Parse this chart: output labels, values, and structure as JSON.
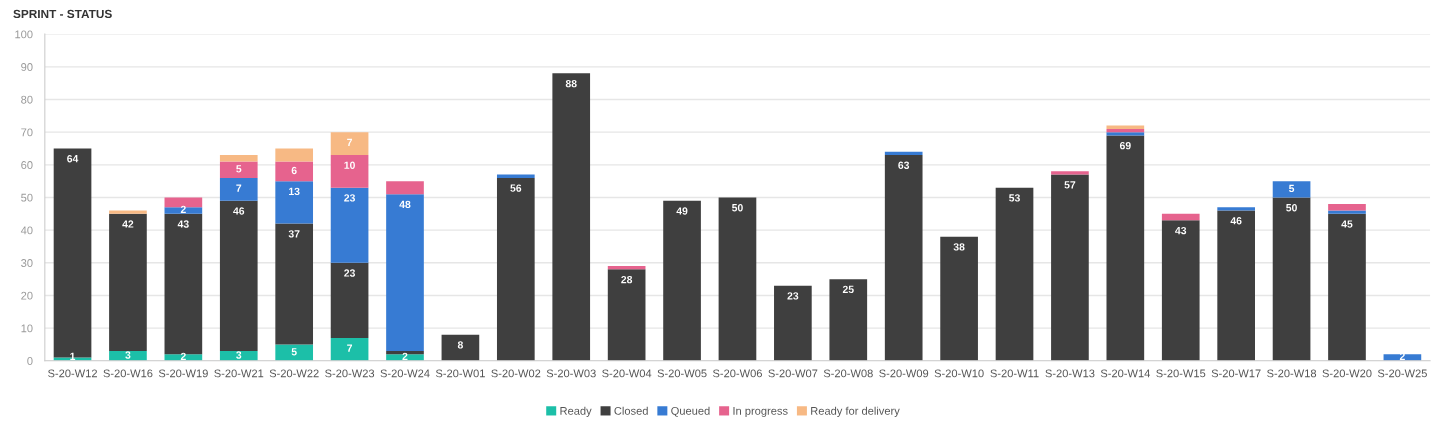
{
  "chart_data": {
    "type": "bar",
    "title": "SPRINT - STATUS",
    "stacked": true,
    "grid": "y",
    "legend": "bottom",
    "ylim": [
      0,
      100
    ],
    "yticks": [
      0,
      10,
      20,
      30,
      40,
      50,
      60,
      70,
      80,
      90,
      100
    ],
    "categories": [
      "S-20-W12",
      "S-20-W16",
      "S-20-W19",
      "S-20-W21",
      "S-20-W22",
      "S-20-W23",
      "S-20-W24",
      "S-20-W01",
      "S-20-W02",
      "S-20-W03",
      "S-20-W04",
      "S-20-W05",
      "S-20-W06",
      "S-20-W07",
      "S-20-W08",
      "S-20-W09",
      "S-20-W10",
      "S-20-W11",
      "S-20-W13",
      "S-20-W14",
      "S-20-W15",
      "S-20-W17",
      "S-20-W18",
      "S-20-W20",
      "S-20-W25"
    ],
    "series": [
      {
        "name": "Ready",
        "color": "#1cbfa8",
        "values": [
          1,
          3,
          2,
          3,
          5,
          7,
          2,
          null,
          null,
          null,
          null,
          null,
          null,
          null,
          null,
          null,
          null,
          null,
          null,
          null,
          null,
          null,
          null,
          null,
          null
        ],
        "value_labels": [
          "1",
          "3",
          "2",
          "3",
          "5",
          "7",
          "2",
          null,
          null,
          null,
          null,
          null,
          null,
          null,
          null,
          null,
          null,
          null,
          null,
          null,
          null,
          null,
          null,
          null,
          null
        ]
      },
      {
        "name": "Closed",
        "color": "#3f3f3f",
        "values": [
          64,
          42,
          43,
          46,
          37,
          23,
          1,
          8,
          56,
          88,
          28,
          49,
          50,
          23,
          25,
          63,
          38,
          53,
          57,
          69,
          43,
          46,
          50,
          45,
          null
        ],
        "value_labels": [
          "64",
          "42",
          "43",
          "46",
          "37",
          "23",
          null,
          "8",
          "56",
          "88",
          "28",
          "49",
          "50",
          "23",
          "25",
          "63",
          "38",
          "53",
          "57",
          "69",
          "43",
          "46",
          "50",
          "45",
          null
        ]
      },
      {
        "name": "Queued",
        "color": "#377bd3",
        "values": [
          null,
          null,
          2,
          7,
          13,
          23,
          48,
          null,
          1,
          null,
          null,
          null,
          null,
          null,
          null,
          1,
          null,
          null,
          null,
          1,
          null,
          1,
          5,
          1,
          2
        ],
        "value_labels": [
          null,
          null,
          "2",
          "7",
          "13",
          "23",
          "48",
          null,
          null,
          null,
          null,
          null,
          null,
          null,
          null,
          null,
          null,
          null,
          null,
          null,
          null,
          null,
          "5",
          null,
          "2"
        ]
      },
      {
        "name": "In progress",
        "color": "#e6638e",
        "values": [
          null,
          null,
          3,
          5,
          6,
          10,
          4,
          null,
          null,
          null,
          1,
          null,
          null,
          null,
          null,
          null,
          null,
          null,
          1,
          1,
          2,
          null,
          null,
          2,
          null
        ],
        "value_labels": [
          null,
          null,
          null,
          "5",
          "6",
          "10",
          null,
          null,
          null,
          null,
          null,
          null,
          null,
          null,
          null,
          null,
          null,
          null,
          null,
          null,
          null,
          null,
          null,
          null,
          null
        ]
      },
      {
        "name": "Ready for delivery",
        "color": "#f7b984",
        "values": [
          null,
          1,
          null,
          2,
          4,
          7,
          null,
          null,
          null,
          null,
          null,
          null,
          null,
          null,
          null,
          null,
          null,
          null,
          null,
          1,
          null,
          null,
          null,
          null,
          null
        ],
        "value_labels": [
          null,
          null,
          null,
          null,
          null,
          "7",
          null,
          null,
          null,
          null,
          null,
          null,
          null,
          null,
          null,
          null,
          null,
          null,
          null,
          null,
          null,
          null,
          null,
          null,
          null
        ]
      }
    ]
  }
}
